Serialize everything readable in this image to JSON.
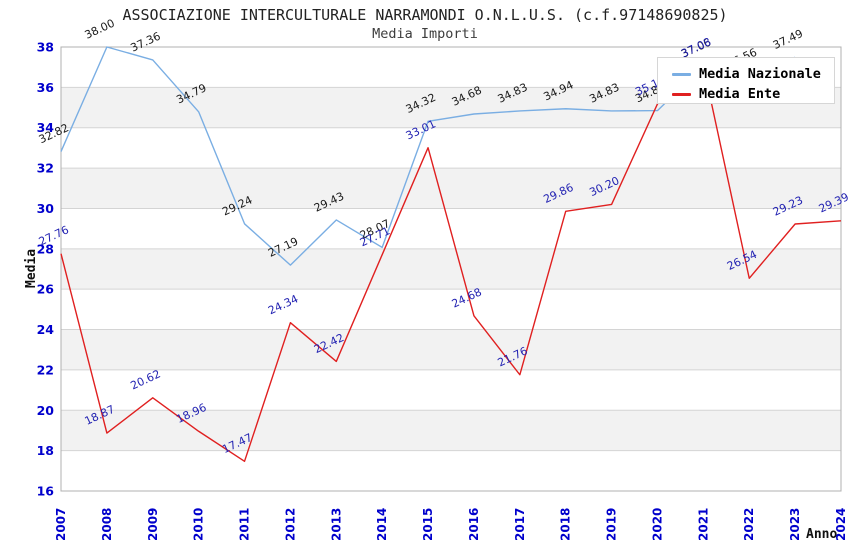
{
  "header": {
    "title": "ASSOCIAZIONE INTERCULTURALE NARRAMONDI O.N.L.U.S. (c.f.97148690825)",
    "subtitle": "Media Importi"
  },
  "axes": {
    "y_label": "Media",
    "x_label": "Anno"
  },
  "legend": {
    "items": [
      {
        "label": "Media Nazionale",
        "color": "#7aaee3"
      },
      {
        "label": "Media Ente",
        "color": "#e02020"
      }
    ]
  },
  "colors": {
    "band": "#f2f2f2",
    "gridline": "#d4d4d4",
    "plot_border": "#b0b0b0",
    "tick_label": "#0000cc"
  },
  "chart_data": {
    "type": "line",
    "title": "ASSOCIAZIONE INTERCULTURALE NARRAMONDI O.N.L.U.S. (c.f.97148690825)",
    "subtitle": "Media Importi",
    "xlabel": "Anno",
    "ylabel": "Media",
    "x": [
      "2007",
      "2008",
      "2009",
      "2010",
      "2011",
      "2012",
      "2013",
      "2014",
      "2015",
      "2016",
      "2017",
      "2018",
      "2019",
      "2020",
      "2021",
      "2022",
      "2023",
      "2024"
    ],
    "ylim": [
      16,
      38
    ],
    "y_ticks": [
      16,
      18,
      20,
      22,
      24,
      26,
      28,
      30,
      32,
      34,
      36,
      38
    ],
    "gray_band_lower_values": [
      18,
      22,
      26,
      30,
      34
    ],
    "legend_position": "top-right",
    "grid": "horizontal",
    "series": [
      {
        "name": "Media Nazionale",
        "color": "#7aaee3",
        "label_color": "#1a1a1a",
        "values": [
          32.82,
          38.0,
          37.36,
          34.79,
          29.24,
          27.19,
          29.43,
          28.07,
          34.32,
          34.68,
          34.83,
          34.94,
          34.83,
          34.85,
          37.06,
          36.56,
          37.49,
          null
        ]
      },
      {
        "name": "Media Ente",
        "color": "#e02020",
        "label_color": "#2222b2",
        "values": [
          27.76,
          18.87,
          20.62,
          18.96,
          17.47,
          24.34,
          22.42,
          27.71,
          33.01,
          24.68,
          21.76,
          29.86,
          30.2,
          35.18,
          37.08,
          26.54,
          29.23,
          29.39
        ]
      }
    ]
  }
}
